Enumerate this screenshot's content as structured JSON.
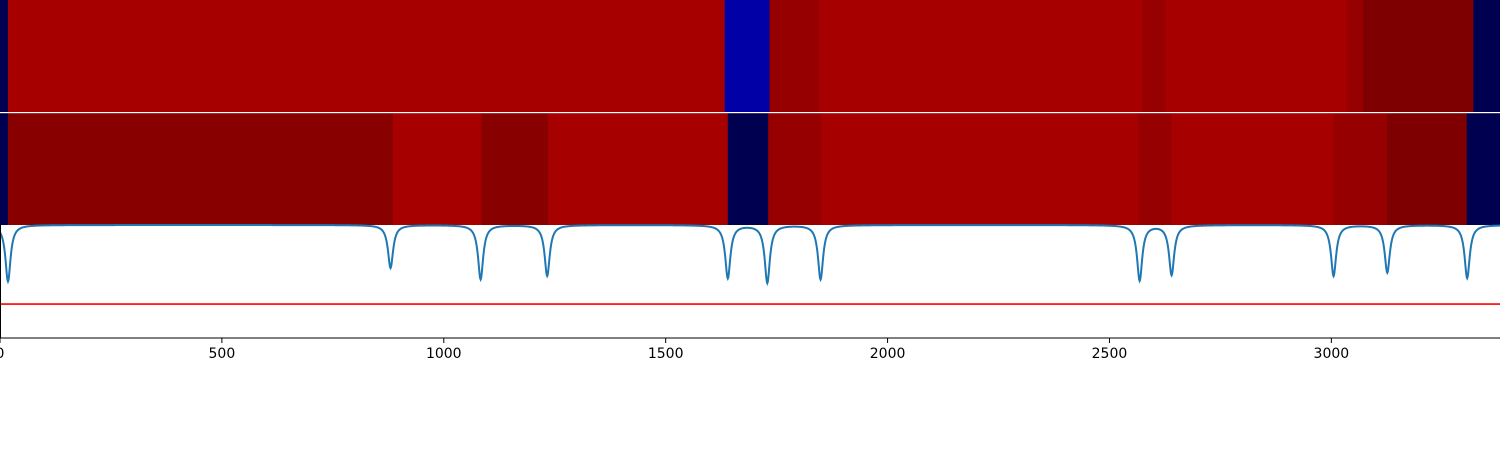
{
  "chart_data": {
    "type": "heatmap",
    "title": "",
    "xlabel": "",
    "ylabel": "",
    "xlim": [
      0,
      3380
    ],
    "xticks": [
      0,
      500,
      1000,
      1500,
      2000,
      2500,
      3000
    ],
    "xtick_labels": [
      "0",
      "500",
      "1000",
      "1500",
      "2000",
      "2500",
      "3000"
    ],
    "colors": {
      "dark_navy": "#000050",
      "blue": "#0000a6",
      "red": "#a60000",
      "dark_red": "#960000",
      "darker_red": "#880000",
      "maroon": "#7e0000",
      "signal_line": "#1f77b4",
      "threshold_line": "#ff0000",
      "separator": "#ffffff"
    },
    "rows": [
      {
        "segments": [
          {
            "start": 0,
            "end": 18,
            "color": "dark_navy"
          },
          {
            "start": 18,
            "end": 1633,
            "color": "red"
          },
          {
            "start": 1633,
            "end": 1734,
            "color": "blue"
          },
          {
            "start": 1734,
            "end": 1845,
            "color": "dark_red"
          },
          {
            "start": 1845,
            "end": 2575,
            "color": "red"
          },
          {
            "start": 2575,
            "end": 2626,
            "color": "dark_red"
          },
          {
            "start": 2626,
            "end": 3035,
            "color": "red"
          },
          {
            "start": 3035,
            "end": 3072,
            "color": "dark_red"
          },
          {
            "start": 3072,
            "end": 3320,
            "color": "maroon"
          },
          {
            "start": 3320,
            "end": 3380,
            "color": "dark_navy"
          }
        ]
      },
      {
        "segments": [
          {
            "start": 0,
            "end": 18,
            "color": "dark_navy"
          },
          {
            "start": 18,
            "end": 885,
            "color": "darker_red"
          },
          {
            "start": 885,
            "end": 1085,
            "color": "red"
          },
          {
            "start": 1085,
            "end": 1235,
            "color": "darker_red"
          },
          {
            "start": 1235,
            "end": 1640,
            "color": "red"
          },
          {
            "start": 1640,
            "end": 1731,
            "color": "dark_navy"
          },
          {
            "start": 1731,
            "end": 1850,
            "color": "dark_red"
          },
          {
            "start": 1850,
            "end": 2565,
            "color": "red"
          },
          {
            "start": 2565,
            "end": 2640,
            "color": "dark_red"
          },
          {
            "start": 2640,
            "end": 3005,
            "color": "red"
          },
          {
            "start": 3005,
            "end": 3125,
            "color": "dark_red"
          },
          {
            "start": 3125,
            "end": 3305,
            "color": "maroon"
          },
          {
            "start": 3305,
            "end": 3380,
            "color": "dark_navy"
          }
        ]
      }
    ],
    "signal": {
      "baseline": 1.0,
      "ylim": [
        0,
        1.0
      ],
      "threshold": 0.3,
      "dips": [
        {
          "x": 18,
          "depth": 0.5
        },
        {
          "x": 880,
          "depth": 0.38
        },
        {
          "x": 1083,
          "depth": 0.48
        },
        {
          "x": 1233,
          "depth": 0.45
        },
        {
          "x": 1640,
          "depth": 0.47
        },
        {
          "x": 1729,
          "depth": 0.51
        },
        {
          "x": 1849,
          "depth": 0.48
        },
        {
          "x": 2568,
          "depth": 0.49
        },
        {
          "x": 2640,
          "depth": 0.44
        },
        {
          "x": 3005,
          "depth": 0.45
        },
        {
          "x": 3126,
          "depth": 0.42
        },
        {
          "x": 3306,
          "depth": 0.47
        }
      ]
    }
  }
}
